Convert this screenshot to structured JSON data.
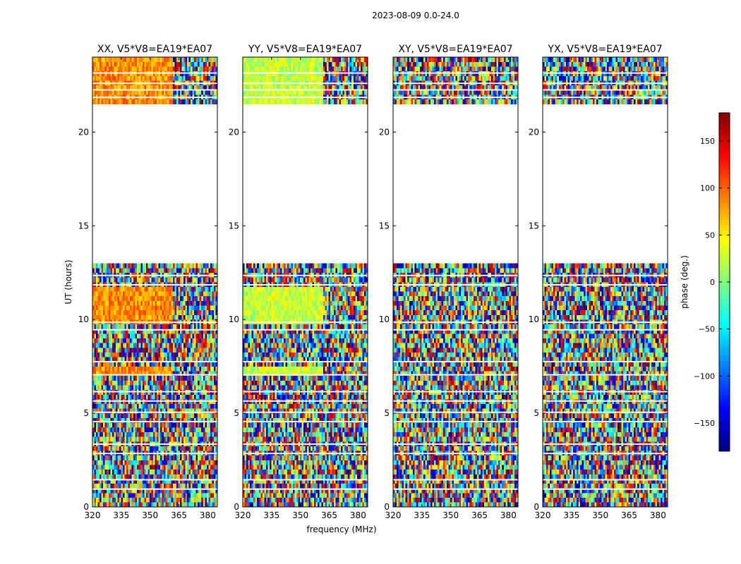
{
  "chart_data": {
    "type": "heatmap",
    "suptitle": "2023-08-09 0.0-24.0",
    "xlabel": "frequency (MHz)",
    "ylabel": "UT (hours)",
    "xlim": [
      320,
      385
    ],
    "ylim": [
      0,
      24
    ],
    "xticks": [
      320,
      335,
      350,
      365,
      380
    ],
    "yticks": [
      0,
      5,
      10,
      15,
      20
    ],
    "xtick_labels": [
      "320",
      "335",
      "350",
      "365",
      "380"
    ],
    "ytick_labels": [
      "0",
      "5",
      "10",
      "15",
      "20"
    ],
    "panels": [
      {
        "title": "XX, V5*V8=EA19*EA07",
        "pol": "XX",
        "coherent_phase_deg": 85,
        "coherent_until_mhz": 362,
        "scatter_deg": 30
      },
      {
        "title": "YY, V5*V8=EA19*EA07",
        "pol": "YY",
        "coherent_phase_deg": 25,
        "coherent_until_mhz": 362,
        "scatter_deg": 30
      },
      {
        "title": "XY, V5*V8=EA19*EA07",
        "pol": "XY",
        "coherent_phase_deg": null,
        "coherent_until_mhz": 320,
        "scatter_deg": 180
      },
      {
        "title": "YX, V5*V8=EA19*EA07",
        "pol": "YX",
        "coherent_phase_deg": null,
        "coherent_until_mhz": 320,
        "scatter_deg": 180
      }
    ],
    "data_gap_hours": [
      [
        13.0,
        21.4
      ]
    ],
    "blank_rows_hours": [
      0.95,
      1.45,
      2.85,
      3.35,
      4.55,
      5.05,
      5.65,
      6.15,
      7.05,
      7.75,
      9.45,
      9.85,
      11.85,
      12.35,
      21.85,
      22.25,
      22.6,
      23.15
    ],
    "colorbar": {
      "label": "phase (deg.)",
      "range": [
        -180,
        180
      ],
      "ticks": [
        -150,
        -100,
        -50,
        0,
        50,
        100,
        150
      ],
      "tick_labels": [
        "−150",
        "−100",
        "−50",
        "0",
        "50",
        "100",
        "150"
      ],
      "colormap": "jet"
    }
  }
}
